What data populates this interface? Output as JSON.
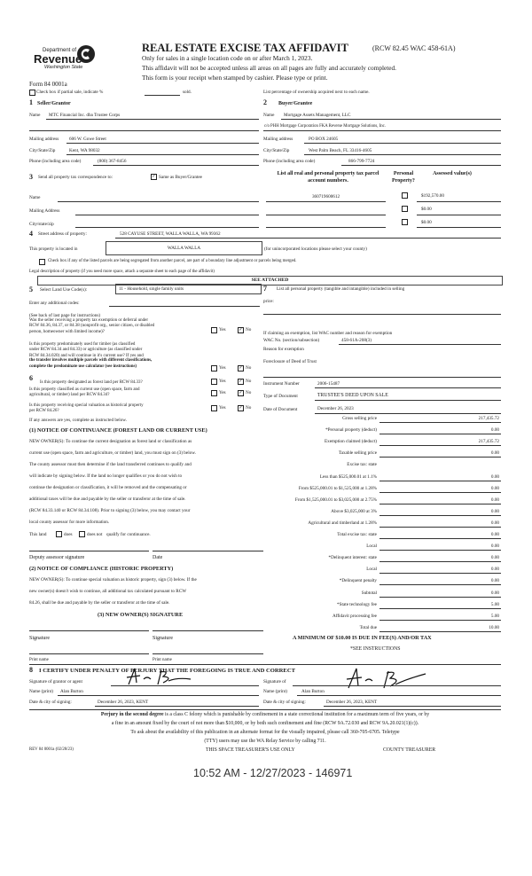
{
  "header": {
    "logo_text": [
      "Department of",
      "Revenue",
      "Washington State"
    ],
    "form_number": "Form 84 0001a",
    "title": "REAL ESTATE EXCISE TAX AFFIDAVIT",
    "title_ref": "(RCW 82.45 WAC 458-61A)",
    "subtitle_lines": [
      "Only for sales in a single location code on or after March 1, 2023.",
      "This affidavit will not be accepted unless all areas on all pages are fully and accurately completed.",
      "This form is your receipt when stamped by cashier. Please type or print."
    ]
  },
  "partial_sale": {
    "label": "Check box if partial sale, indicate %",
    "suffix": "sold.",
    "checked": false
  },
  "ownership_note": "List percentage of ownership acquired next to each name.",
  "seller": {
    "number": "1",
    "heading": "Seller/Grantor",
    "name_label": "Name",
    "name": "MTC Financial Inc. dba Trustee Corps",
    "mailing_label": "Mailing address",
    "mailing": "606 W. Gowe Street",
    "city_label": "City/State/Zip",
    "city": "Kent, WA  98032",
    "phone_label": "Phone (including area code)",
    "phone": "(800) 367-8456"
  },
  "buyer": {
    "number": "2",
    "heading": "Buyer/Grantee",
    "name_label": "Name",
    "name": "Mortgage Assets Management, LLC",
    "name2": "c/o PHH Mortgage Corporation FKA Reverse Mortgage Solutions, Inc.",
    "mailing_label": "Mailing address",
    "mailing": "PO BOX 24605",
    "city_label": "City/State/Zip",
    "city": "West Palm Beach, FL 33416-4605",
    "phone_label": "Phone (including area code)",
    "phone": "866-799-7724"
  },
  "correspondence": {
    "number": "3",
    "label": "Send all property tax correspondence to:",
    "same_label": "Same as Buyer/Grantee",
    "same_checked": true,
    "name_label": "Name",
    "mailing_label": "Mailing Address",
    "city_label": "City/state/zip"
  },
  "parcels": {
    "header": "List all real and personal property tax parcel account numbers.",
    "personal_header": "Personal Property?",
    "assessed_header": "Assessed value(s)",
    "rows": [
      {
        "parcel": "360719600612",
        "personal": false,
        "value": "$192,570.00"
      },
      {
        "parcel": "",
        "personal": false,
        "value": "$0.00"
      },
      {
        "parcel": "",
        "personal": false,
        "value": "$0.00"
      }
    ]
  },
  "property": {
    "number": "4",
    "street_label": "Street address of property:",
    "street": "528 CAYUSE STREET, WALLA WALLA, WA 99362",
    "located_label": "This property is located in",
    "located": "WALLA WALLA",
    "located_note": "(for unincorporated locations please select your county)",
    "segregated_label": "Check box if any of the listed parcels are being segregated from another parcel, are part of a boundary line adjustment or parcels being merged.",
    "legal_label": "Legal description of property (if you need more space, attach a separate sheet to each page of the affidavit)",
    "legal": "SEE ATTACHED"
  },
  "land_use": {
    "number": "5",
    "label": "Select Land Use Code(s):",
    "value": "11 - Household, single family units",
    "additional_label": "Enter any additional codes:",
    "instructions": "(See back of last page for instructions)"
  },
  "personal_property": {
    "number": "7",
    "label": "List all personal property (tangible and intangible) included in selling",
    "label2": "price:"
  },
  "questions": {
    "yes": "Yes",
    "no": "No",
    "q1": [
      "Was the seller receiving a property tax exemption or deferral under",
      "RCW 84.36, 84.37, or 84.38 (nonprofit org., senior citizen, or disabled",
      "person, homeowner with limited income)?"
    ],
    "q2": [
      "Is this property predominately used for timber (as classified",
      "under RCW 84.34 and 84.33) or agriculture (as classified under",
      "RCW 84.34.020) and will continue in it's current use? If yes and",
      "the transfer involves multiple parcels with different classifications,",
      "complete the predominate use calculator (see instructions)"
    ],
    "q3_number": "6",
    "q3": "Is this property designated as forest land per RCW 84.33?",
    "q4": [
      "Is this property classified as current use (open space, farm and",
      "agricultural, or timber) land per RCW 84.34?"
    ],
    "q5": [
      "Is this property receiving special valuation as historical property",
      "per RCW 84.26?"
    ],
    "footer": "If any answers are yes, complete as instructed below.",
    "answers": [
      "No",
      "No",
      "No",
      "No",
      "No"
    ]
  },
  "exemption": {
    "label": "If claiming an exemption, list WAC number and reason for exemption",
    "wac_label": "WAC No. (section/subsection)",
    "wac": "458-61A-208(3)",
    "reason_label": "Reason for exemption",
    "reason": "Foreclosure of Deed of Trust",
    "instrument_label": "Instrument Number",
    "instrument": "2006-15487",
    "type_label": "Type of Document",
    "type": "TRUSTEE'S DEED UPON SALE",
    "date_label": "Date of Document",
    "date": "December 26, 2023"
  },
  "tax_table": [
    {
      "label": "Gross selling price",
      "value": "217,435.72"
    },
    {
      "label": "*Personal property (deduct)",
      "value": "0.00"
    },
    {
      "label": "Exemption claimed (deduct)",
      "value": "217,435.72"
    },
    {
      "label": "Taxable selling price",
      "value": "0.00"
    },
    {
      "label": "Excise tax: state",
      "value": ""
    },
    {
      "label": "Less than $525,000.01 at 1.1%",
      "value": "0.00"
    },
    {
      "label": "From $525,000.01 to $1,525,000 at 1.28%",
      "value": "0.00"
    },
    {
      "label": "From $1,525,000.01 to $3,025,000 at 2.75%",
      "value": "0.00"
    },
    {
      "label": "Above $3,025,000 at 3%",
      "value": "0.00"
    },
    {
      "label": "Agricultural and timberland at 1.28%",
      "value": "0.00"
    },
    {
      "label": "Total excise tax: state",
      "value": "0.00"
    },
    {
      "label": "Local",
      "value": "0.00"
    },
    {
      "label": "*Delinquent interest: state",
      "value": "0.00"
    },
    {
      "label": "Local",
      "value": "0.00"
    },
    {
      "label": "*Delinquent penalty",
      "value": "0.00"
    },
    {
      "label": "Subtotal",
      "value": "0.00"
    },
    {
      "label": "*State technology fee",
      "value": "5.00"
    },
    {
      "label": "Affidavit processing fee",
      "value": "5.00"
    },
    {
      "label": "Total due",
      "value": "10.00"
    }
  ],
  "minimum_note": "A MINIMUM OF $10.00 IS DUE IN FEE(S) AND/OR TAX",
  "see_instructions": "*SEE INSTRUCTIONS",
  "notice1": {
    "heading": "(1) NOTICE OF CONTINUANCE (FOREST LAND OR CURRENT USE)",
    "lines": [
      "NEW OWNER(S): To continue the current designation as forest land or classification as",
      "current use (open space, farm and agriculture, or timber) land, you must sign on (3) below.",
      "The county assessor must then determine if the land transferred continues to qualify and",
      "will indicate by signing below.  If the land no longer qualifies or you do not wish to",
      "continue the designation or classification, it will be removed and the compensating or",
      "additional taxes will be due and payable by the seller or transferor at the time of sale.",
      "(RCW 84.33.140 or RCW 84.34.108). Prior to signing (3) below, you may contact your",
      "local county assessor for more information."
    ],
    "land_label": "This land",
    "does": "does",
    "does_not": "does not",
    "qualify": "qualify for continuance.",
    "deputy_label": "Deputy assessor signature",
    "date_label": "Date"
  },
  "notice2": {
    "heading": "(2) NOTICE OF COMPLIANCE (HISTORIC PROPERTY)",
    "lines": [
      "NEW OWNER(S): To continue special valuation as historic property, sign (3) below.  If the",
      "new owner(s) doesn't wish to continue, all additional tax calculated pursuant to RCW",
      "84.26, shall be due and payable by the seller or transferor at the time of sale."
    ],
    "sig_heading": "(3) NEW OWNER(S) SIGNATURE",
    "signature_label": "Signature",
    "print_label": "Print name"
  },
  "certify": {
    "number": "8",
    "heading": "I CERTIFY UNDER PENALTY OF PERJURY THAT THE FOREGOING IS TRUE AND CORRECT",
    "grantor_sig_label": "Signature of grantor or agent",
    "grantee_sig_label": "Signature of",
    "name_label": "Name (print)",
    "grantor_name": "Alan Burton",
    "grantee_name": "Alan Burton",
    "date_label": "Date & city of signing:",
    "grantor_date": "December 26, 2023, KENT",
    "grantee_date": "December 26, 2023, KENT"
  },
  "perjury": {
    "bold": "Perjury in the second degree",
    "lines": [
      " is a class C felony which is punishable by confinement in a state correctional institution for a maximum term of five years, or by",
      "a fine in an amount fixed by the court of not more than $10,000, or by both such confinement and fine (RCW 9A.72.030 and RCW 9A.20.021(1)(c)).",
      "To ask about the availability of this publication in an alternate format for the visually impaired, please call 360-705-6705. Teletype",
      "(TTY) users may use the WA Relay Service by calling 711."
    ]
  },
  "footer": {
    "rev": "REV 84 0001a  (02/28/23)",
    "treasurer_space": "THIS SPACE TREASURER'S USE ONLY",
    "county_treasurer": "COUNTY TREASURER"
  },
  "stamp": "10:52 AM - 12/27/2023 - 146971"
}
